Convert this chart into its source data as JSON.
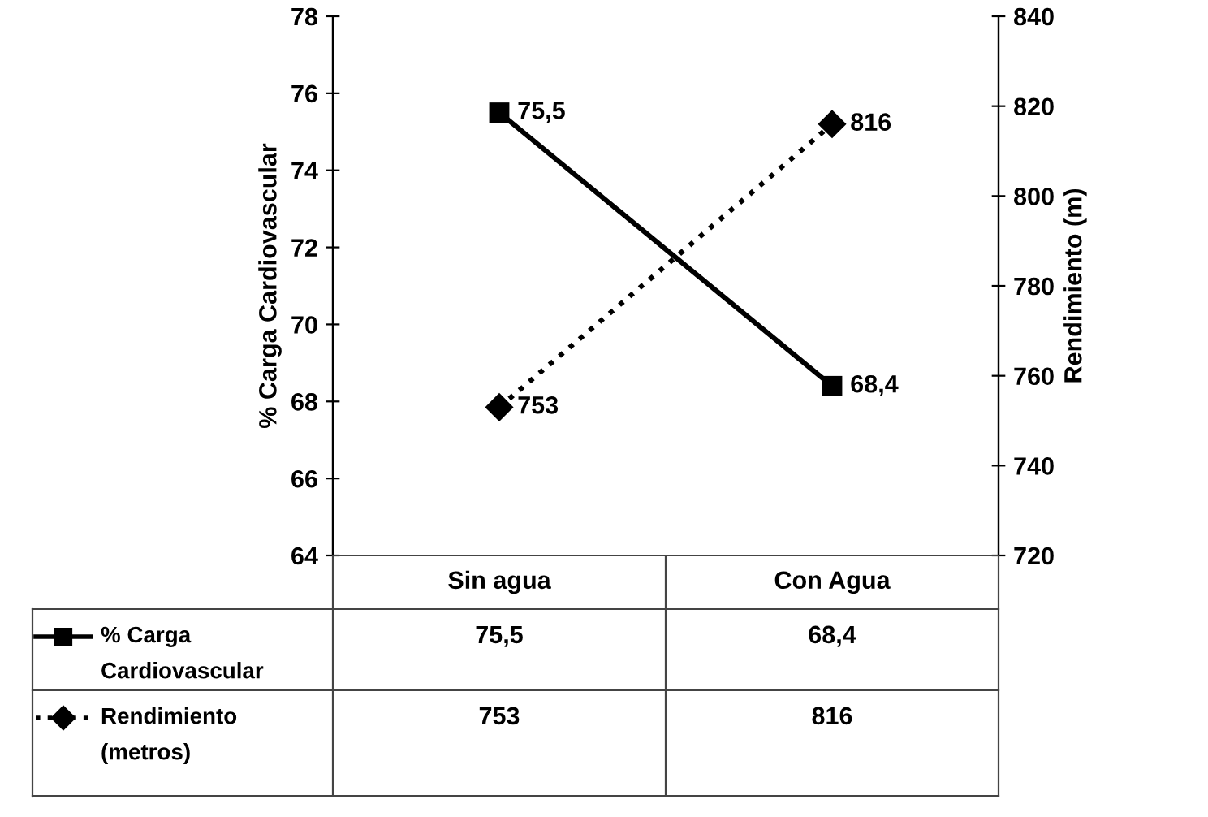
{
  "chart_data": {
    "type": "line",
    "categories": [
      "Sin agua",
      "Con Agua"
    ],
    "ylabel": "% Carga Cardiovascular",
    "y2label": "Rendimiento (m)",
    "ylim": [
      64,
      78
    ],
    "yticks": [
      64,
      66,
      68,
      70,
      72,
      74,
      76,
      78
    ],
    "y2lim": [
      720,
      840
    ],
    "y2ticks": [
      720,
      740,
      760,
      780,
      800,
      820,
      840
    ],
    "legend": "bottom",
    "grid": false,
    "series": [
      {
        "name": "% Carga Cardiovascular",
        "color": "#000000",
        "values": [
          75.5,
          68.4
        ],
        "value_labels": [
          "75,5",
          "68,4"
        ],
        "marker": "square",
        "line_style": "solid"
      },
      {
        "name": "Rendimiento (metros)",
        "color": "#000000",
        "values": [
          753,
          816
        ],
        "value_labels": [
          "753",
          "816"
        ],
        "marker": "diamond",
        "line_style": "dotted",
        "axis": "y2"
      }
    ]
  }
}
